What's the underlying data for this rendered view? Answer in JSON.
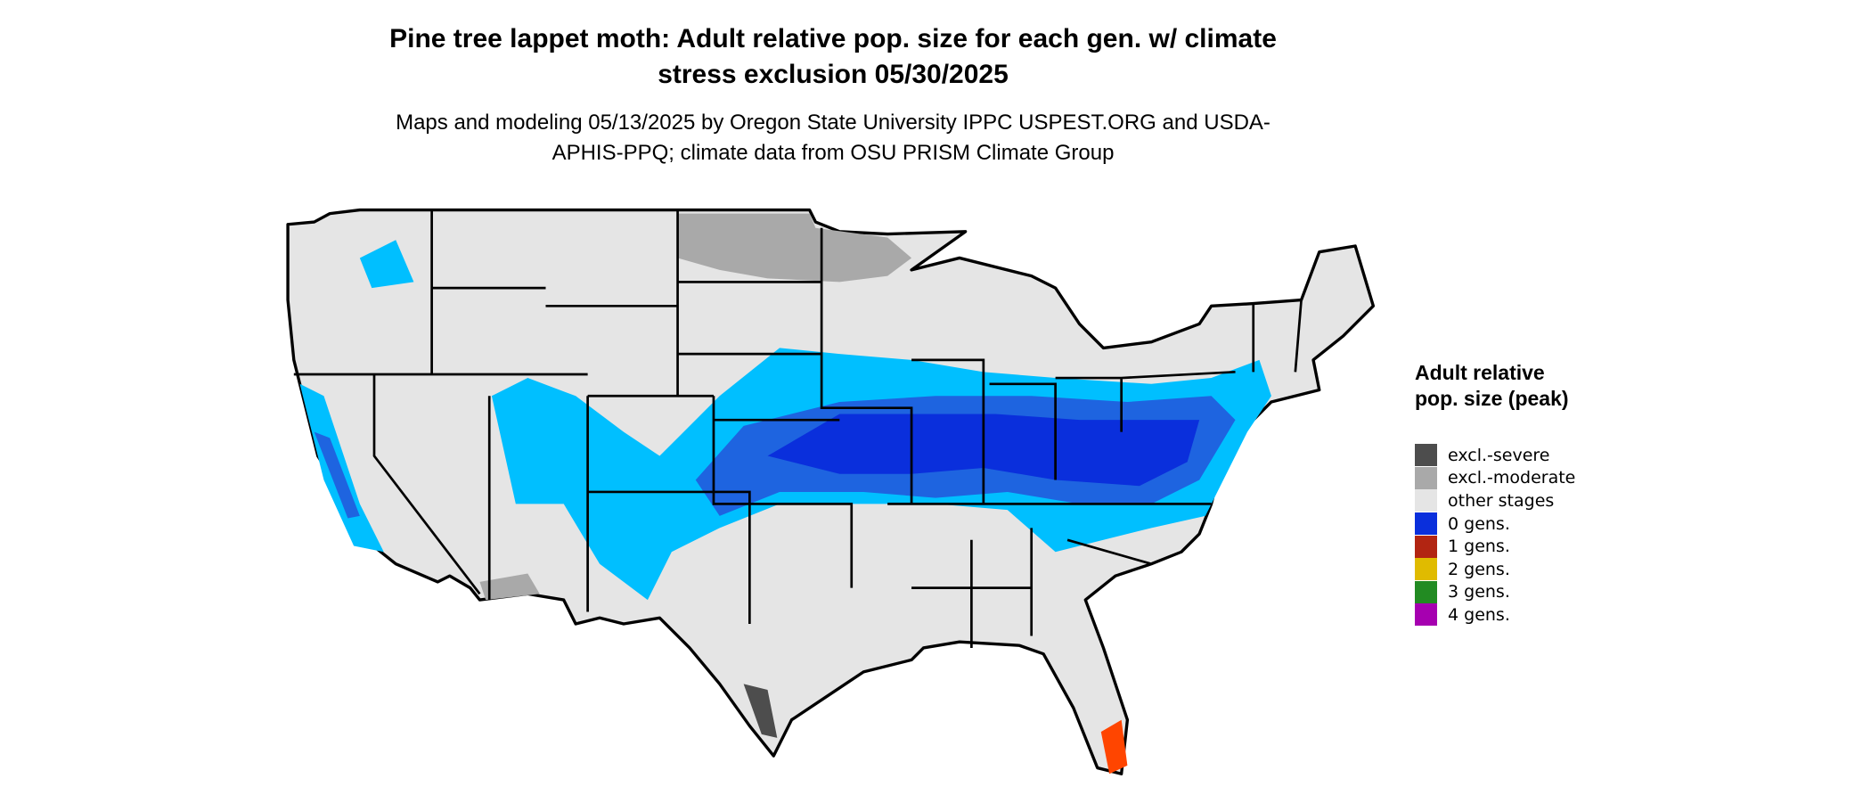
{
  "title": "Pine tree lappet moth: Adult relative pop. size for each gen. w/ climate stress exclusion 05/30/2025",
  "subtitle": "Maps and modeling 05/13/2025 by Oregon State University IPPC USPEST.ORG and USDA-APHIS-PPQ; climate data from OSU PRISM Climate Group",
  "legend": {
    "title": "Adult relative pop. size (peak)",
    "items": [
      {
        "label": "excl.-severe",
        "color": "#4d4d4d"
      },
      {
        "label": "excl.-moderate",
        "color": "#a9a9a9"
      },
      {
        "label": "other stages",
        "color": "#e5e5e5"
      },
      {
        "label": "0 gens.",
        "color": "#0a2fdc"
      },
      {
        "label": "1 gens.",
        "color": "#b22512"
      },
      {
        "label": "2 gens.",
        "color": "#e0bb00"
      },
      {
        "label": "3 gens.",
        "color": "#228b22"
      },
      {
        "label": "4 gens.",
        "color": "#a600b0"
      }
    ]
  }
}
